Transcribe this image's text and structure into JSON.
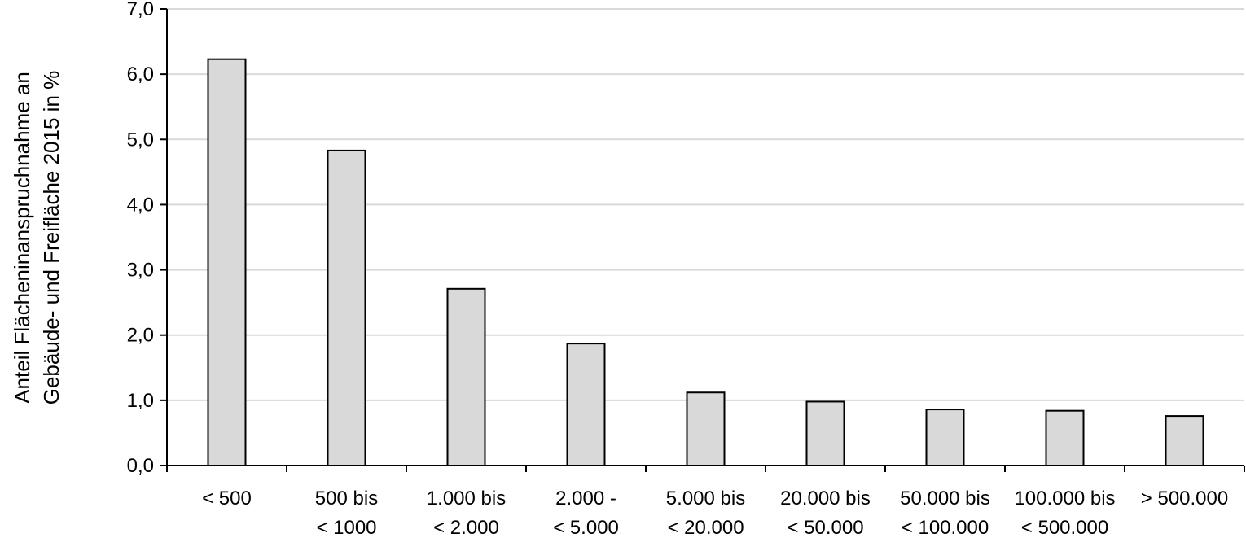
{
  "chart_data": {
    "type": "bar",
    "ylabel_lines": [
      "Anteil Flächeninanspruchnahme an",
      "Gebäude- und Freifläche 2015 in %"
    ],
    "categories": [
      [
        "< 500"
      ],
      [
        "500 bis",
        "< 1000"
      ],
      [
        "1.000 bis",
        "< 2.000"
      ],
      [
        "2.000 -",
        "< 5.000"
      ],
      [
        "5.000 bis",
        "< 20.000"
      ],
      [
        "20.000 bis",
        "< 50.000"
      ],
      [
        "50.000 bis",
        "< 100.000"
      ],
      [
        "100.000 bis",
        "< 500.000"
      ],
      [
        "> 500.000"
      ]
    ],
    "values": [
      6.23,
      4.83,
      2.71,
      1.87,
      1.12,
      0.98,
      0.86,
      0.84,
      0.76
    ],
    "ylim": [
      0,
      7
    ],
    "yticks": [
      "0,0",
      "1,0",
      "2,0",
      "3,0",
      "4,0",
      "5,0",
      "6,0",
      "7,0"
    ],
    "grid": true,
    "colors": {
      "bar_fill": "#d9d9d9",
      "bar_stroke": "#000000",
      "grid": "#d9d9d9",
      "axis": "#000000"
    }
  }
}
